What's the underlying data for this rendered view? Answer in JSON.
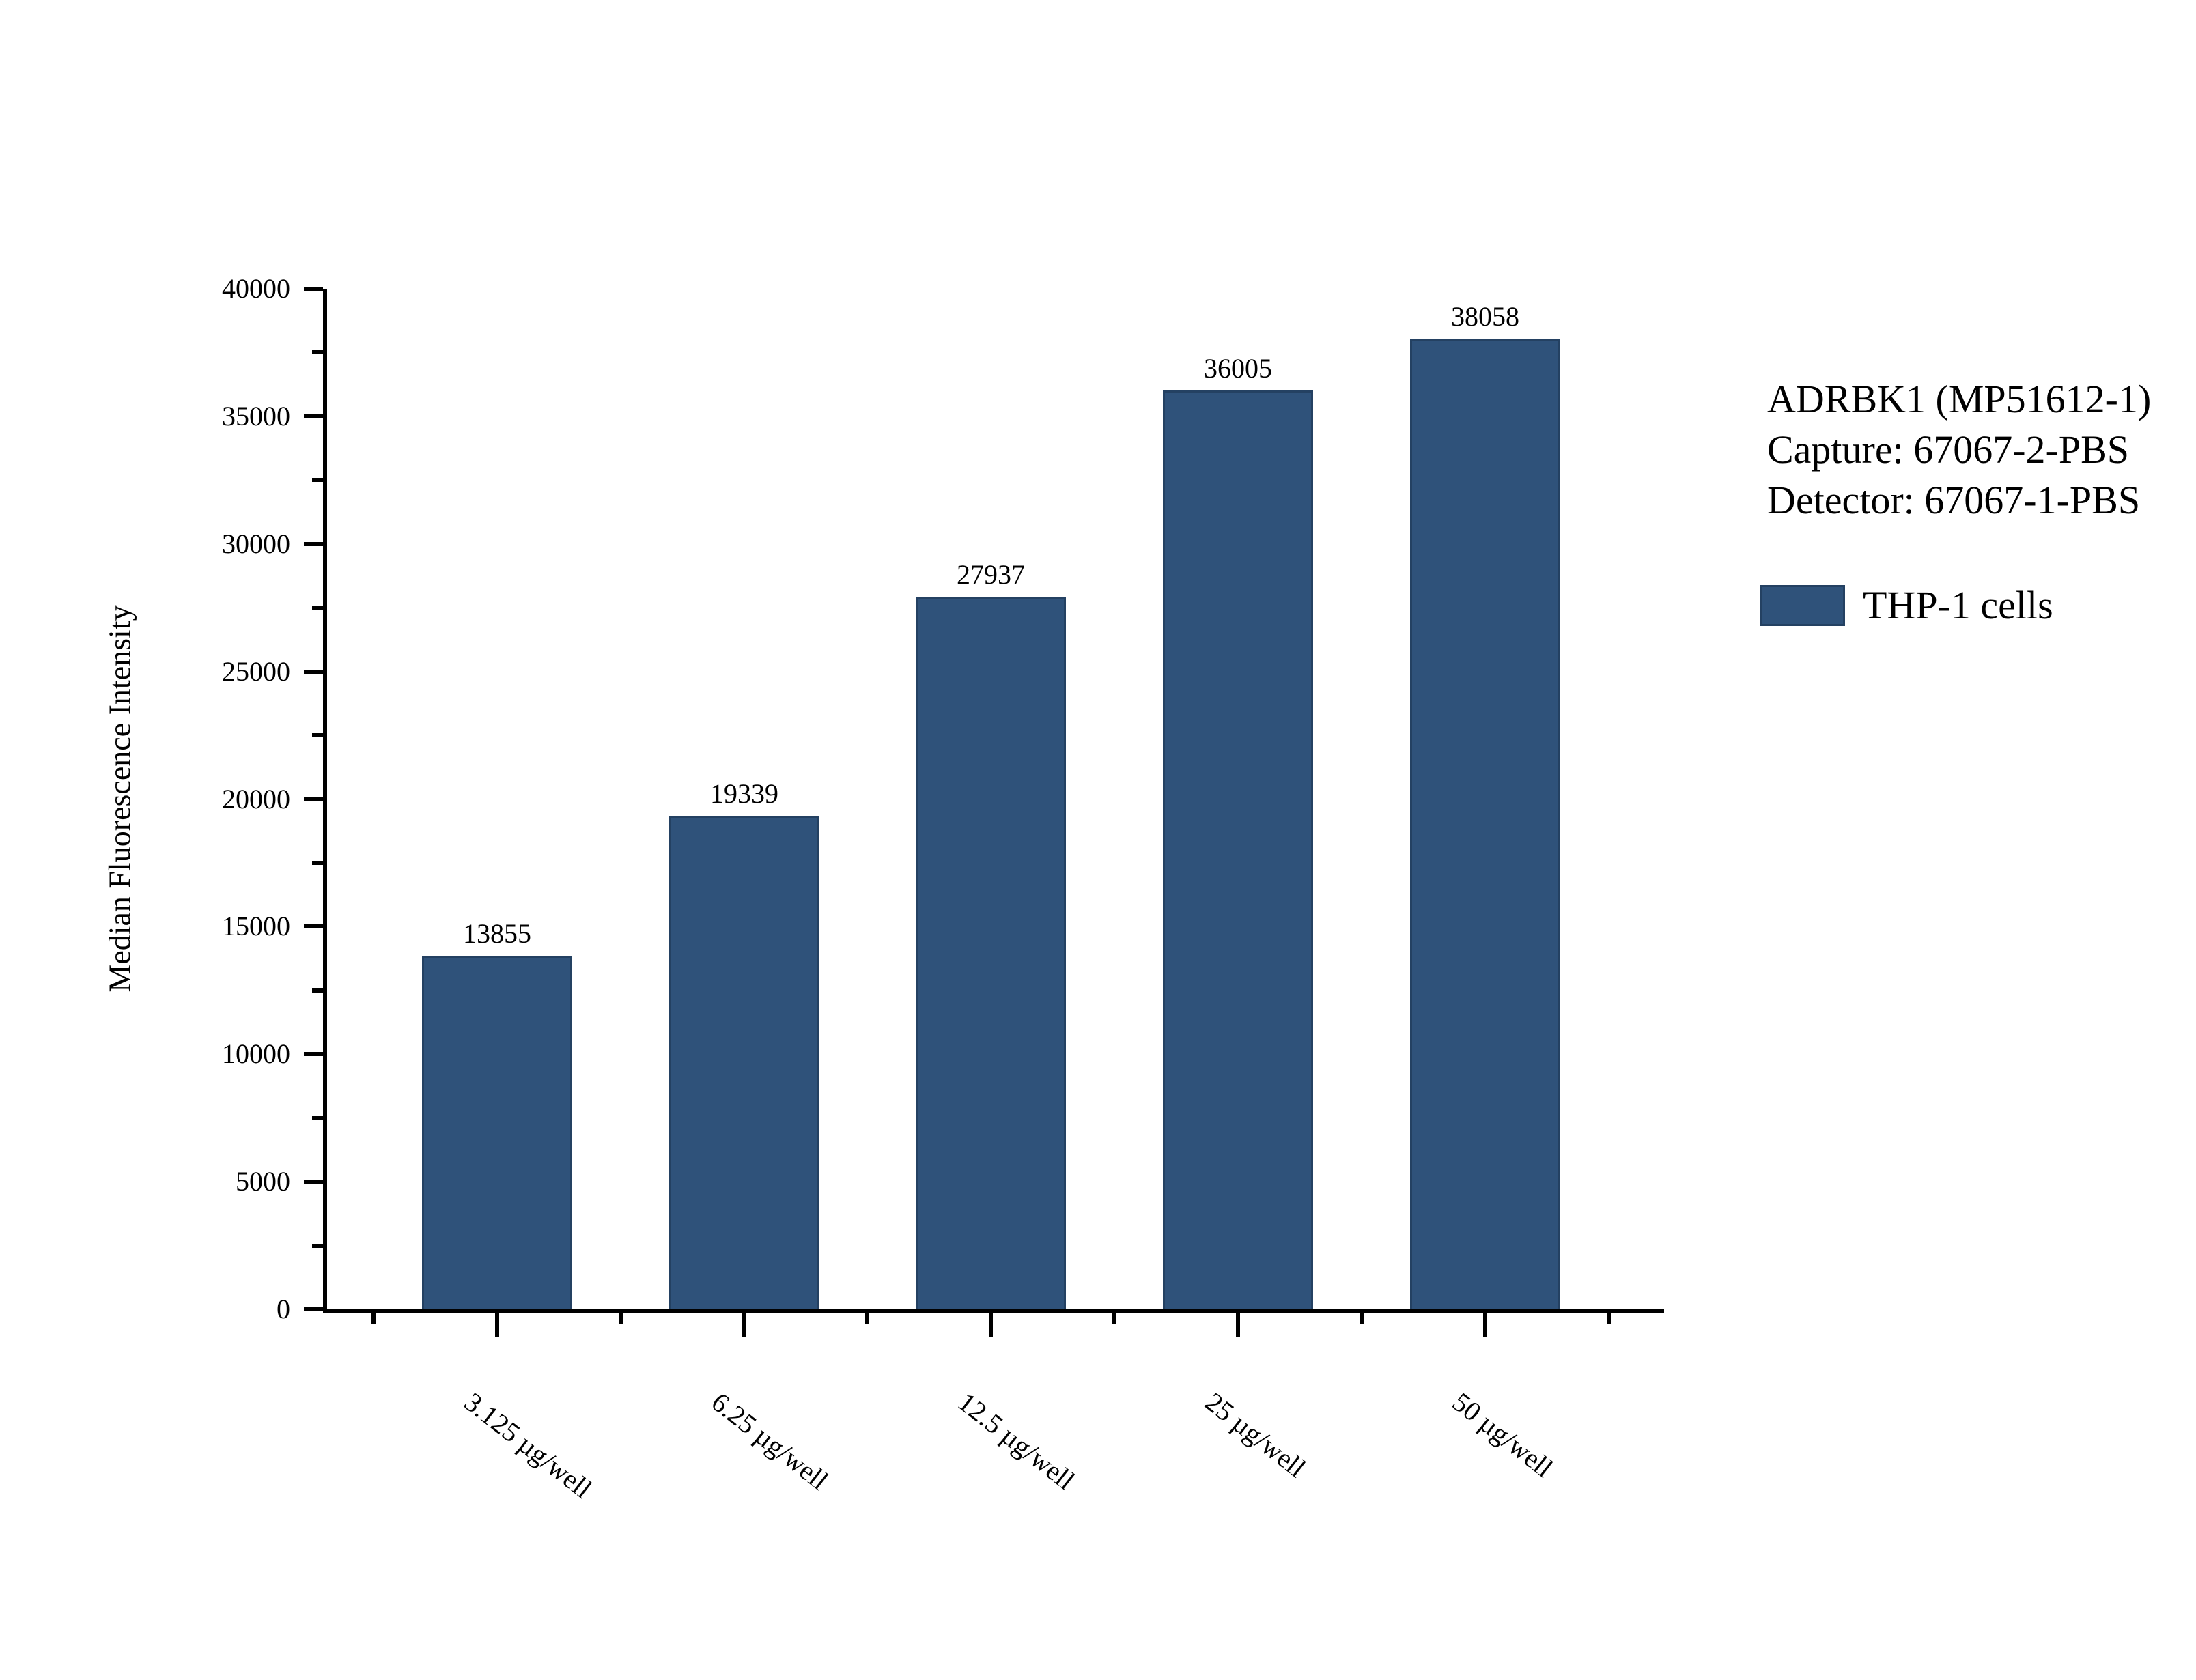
{
  "figure": {
    "annotation": {
      "line1": "ADRBK1 (MP51612-1)",
      "line2": "Capture: 67067-2-PBS",
      "line3": "Detector: 67067-1-PBS"
    },
    "legend": {
      "label": "THP-1 cells",
      "swatch_color": "#2F527A"
    },
    "colors": {
      "bar_fill": "#2F527A",
      "bar_border": "#244162",
      "axis": "#000000",
      "background": "#FFFFFF",
      "text": "#000000"
    }
  },
  "chart_data": {
    "type": "bar",
    "categories": [
      "3.125 µg/well",
      "6.25 µg/well",
      "12.5 µg/well",
      "25 µg/well",
      "50 µg/well"
    ],
    "values": [
      13855,
      19339,
      27937,
      36005,
      38058
    ],
    "series": [
      {
        "name": "THP-1 cells",
        "values": [
          13855,
          19339,
          27937,
          36005,
          38058
        ]
      }
    ],
    "bar_value_labels": [
      "13855",
      "19339",
      "27937",
      "36005",
      "38058"
    ],
    "title": "",
    "xlabel": "",
    "ylabel": "Median Fluorescence Intensity",
    "ylim": [
      0,
      40000
    ],
    "y_major_ticks": [
      0,
      5000,
      10000,
      15000,
      20000,
      25000,
      30000,
      35000,
      40000
    ],
    "y_minor_step": 2500,
    "grid": false,
    "legend_position": "right",
    "legend_entries": [
      "THP-1 cells"
    ]
  }
}
